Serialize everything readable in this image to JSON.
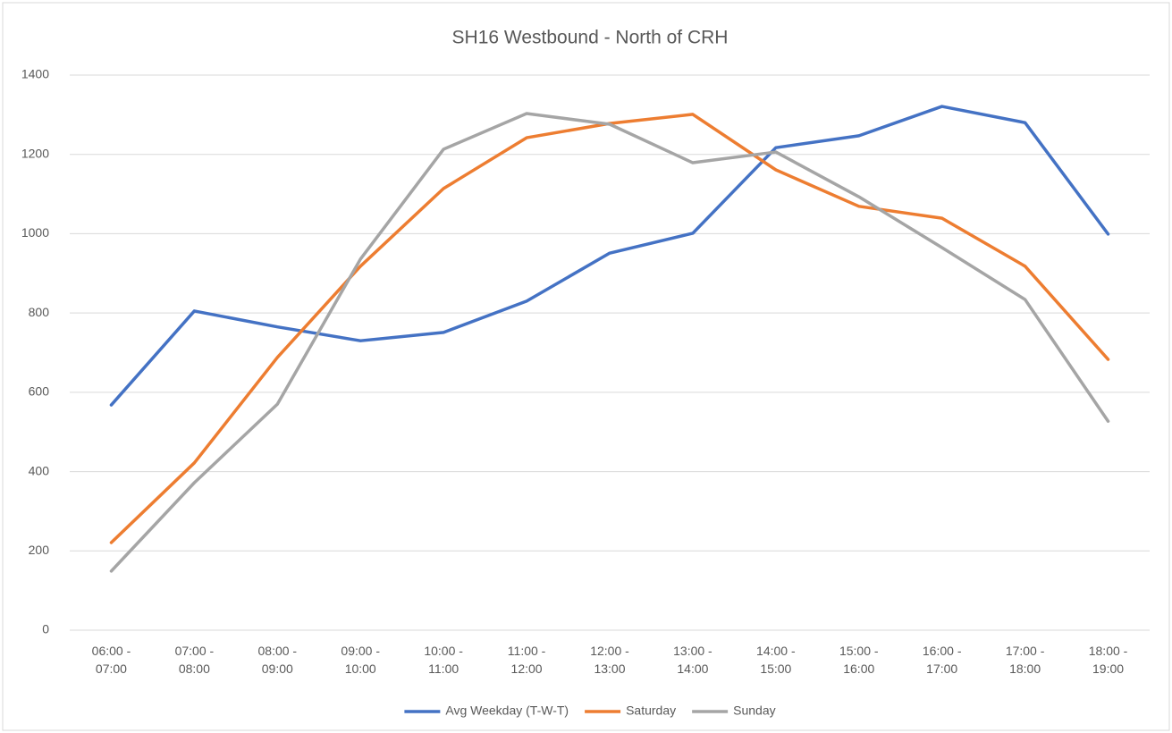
{
  "chart_data": {
    "type": "line",
    "title": "SH16 Westbound - North of CRH",
    "categories": [
      "06:00 - 07:00",
      "07:00 - 08:00",
      "08:00 - 09:00",
      "09:00 - 10:00",
      "10:00 - 11:00",
      "11:00 - 12:00",
      "12:00 - 13:00",
      "13:00 - 14:00",
      "14:00 - 15:00",
      "15:00 - 16:00",
      "16:00 - 17:00",
      "17:00 - 18:00",
      "18:00 - 19:00"
    ],
    "series": [
      {
        "name": "Avg Weekday (T-W-T)",
        "color": "#4472c4",
        "values": [
          568,
          805,
          765,
          730,
          751,
          830,
          951,
          1001,
          1217,
          1247,
          1321,
          1280,
          999
        ]
      },
      {
        "name": "Saturday",
        "color": "#ed7d31",
        "values": [
          221,
          422,
          688,
          918,
          1114,
          1242,
          1278,
          1301,
          1161,
          1069,
          1039,
          918,
          683
        ]
      },
      {
        "name": "Sunday",
        "color": "#a5a5a5",
        "values": [
          149,
          372,
          570,
          936,
          1213,
          1303,
          1276,
          1179,
          1206,
          1093,
          965,
          834,
          527
        ]
      }
    ],
    "ylim": [
      0,
      1400
    ],
    "yticks": [
      0,
      200,
      400,
      600,
      800,
      1000,
      1200,
      1400
    ],
    "grid": true,
    "legend": "bottom"
  }
}
